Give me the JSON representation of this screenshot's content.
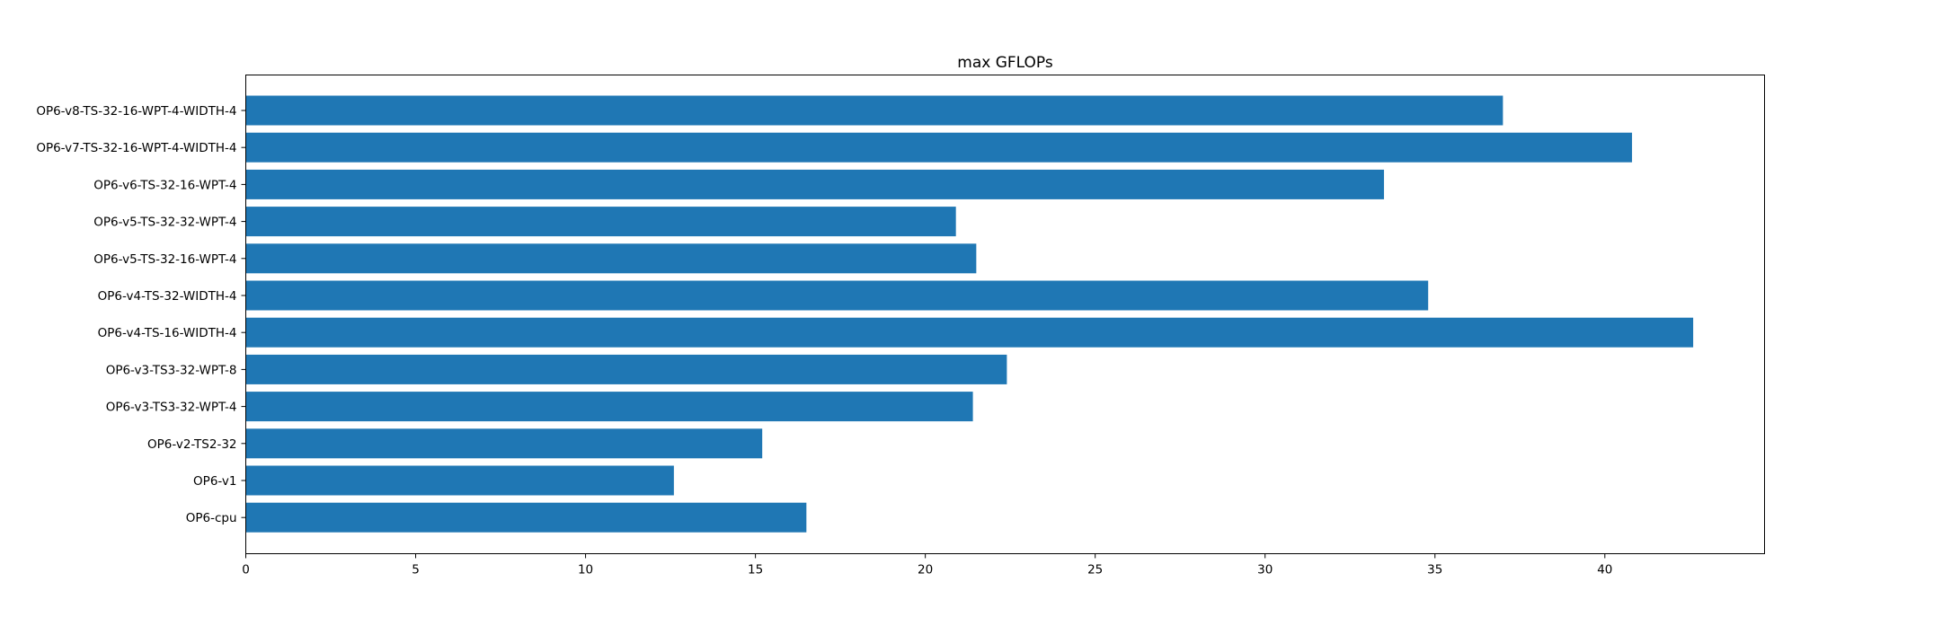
{
  "chart_data": {
    "type": "bar",
    "orientation": "horizontal",
    "title": "max GFLOPs",
    "xlabel": "",
    "ylabel": "",
    "categories": [
      "OP6-v8-TS-32-16-WPT-4-WIDTH-4",
      "OP6-v7-TS-32-16-WPT-4-WIDTH-4",
      "OP6-v6-TS-32-16-WPT-4",
      "OP6-v5-TS-32-32-WPT-4",
      "OP6-v5-TS-32-16-WPT-4",
      "OP6-v4-TS-32-WIDTH-4",
      "OP6-v4-TS-16-WIDTH-4",
      "OP6-v3-TS3-32-WPT-8",
      "OP6-v3-TS3-32-WPT-4",
      "OP6-v2-TS2-32",
      "OP6-v1",
      "OP6-cpu"
    ],
    "values": [
      37.0,
      40.8,
      33.5,
      20.9,
      21.5,
      34.8,
      42.6,
      22.4,
      21.4,
      15.2,
      12.6,
      16.5
    ],
    "xlim": [
      0,
      44.7
    ],
    "xticks": [
      0,
      5,
      10,
      15,
      20,
      25,
      30,
      35,
      40
    ],
    "grid": false,
    "legend": "none",
    "colors": {
      "bar": "#1f77b4",
      "axis": "#000000",
      "background": "#ffffff"
    }
  }
}
